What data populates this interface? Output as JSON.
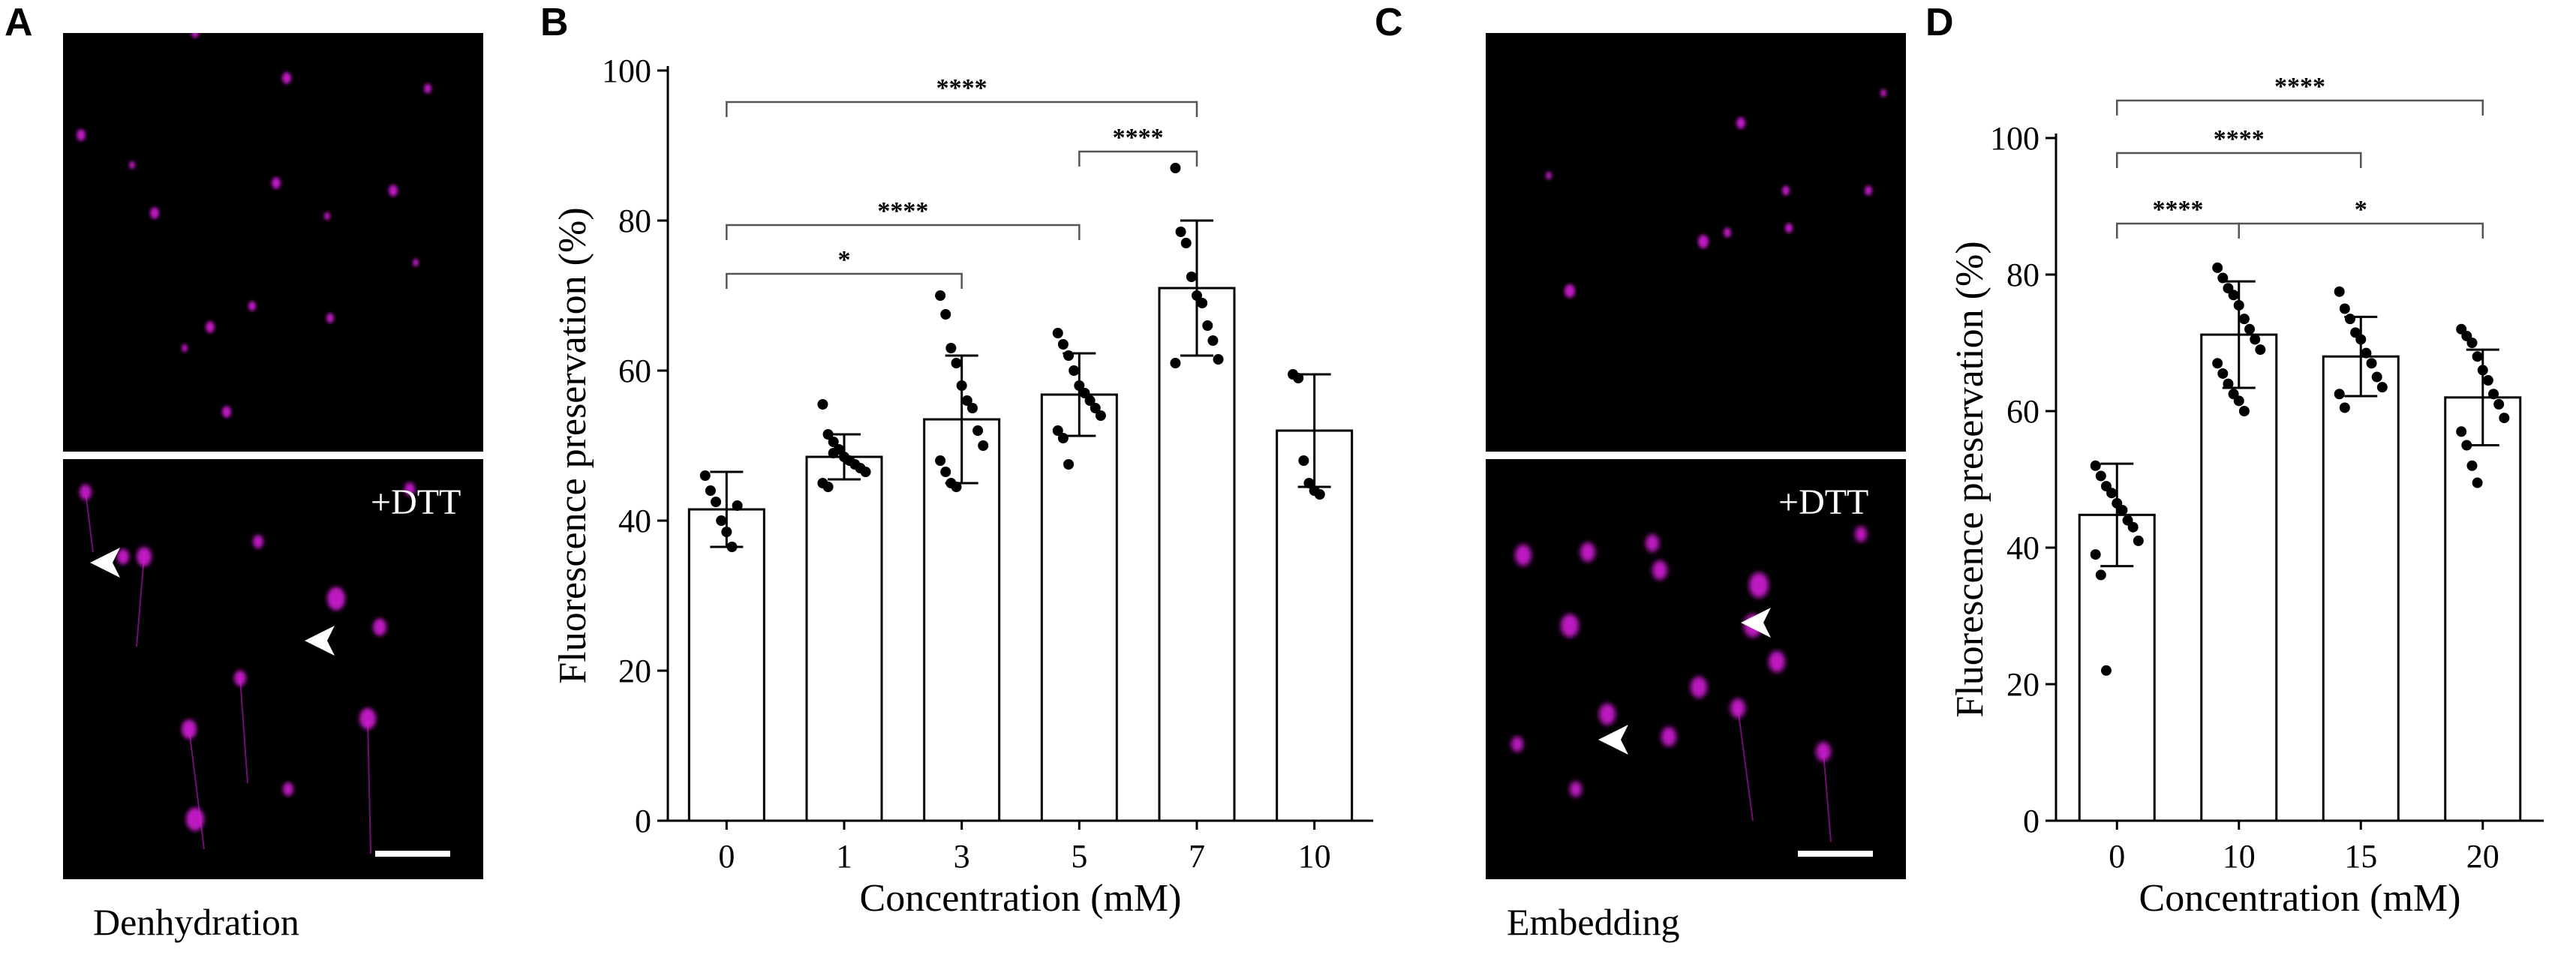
{
  "panels": {
    "a": {
      "letter": "A",
      "treatment_label": "+DTT",
      "caption": "Denhydration"
    },
    "b": {
      "letter": "B"
    },
    "c": {
      "letter": "C",
      "treatment_label": "+DTT",
      "caption": "Embedding"
    },
    "d": {
      "letter": "D"
    }
  },
  "colors": {
    "fluorescence": "#d21ad6",
    "background": "#000000",
    "bar_fill": "#ffffff",
    "stroke": "#000000"
  },
  "icons": {
    "arrowhead": "white-arrowhead-icon",
    "scale_bar": "scale-bar"
  },
  "chart_data": [
    {
      "type": "bar",
      "panel": "B",
      "title": "",
      "xlabel": "Concentration (mM)",
      "ylabel": "Fluorescence preservation (%)",
      "ylim": [
        0,
        100
      ],
      "yticks": [
        0,
        20,
        40,
        60,
        80,
        100
      ],
      "categories": [
        "0",
        "1",
        "3",
        "5",
        "7",
        "10"
      ],
      "values": [
        41.5,
        48.5,
        53.5,
        56.8,
        71.0,
        52.0
      ],
      "sd": [
        5.0,
        3.0,
        8.5,
        5.5,
        9.0,
        7.5
      ],
      "points": [
        [
          46.0,
          44.0,
          42.5,
          40.0,
          38.5,
          36.5,
          42.0
        ],
        [
          55.5,
          51.5,
          50.5,
          49.5,
          48.5,
          48.0,
          47.5,
          47.0,
          46.5,
          45.0,
          44.5,
          49.0
        ],
        [
          70.0,
          67.5,
          63.0,
          61.0,
          58.0,
          56.0,
          55.0,
          52.0,
          50.0,
          48.0,
          46.5,
          45.0,
          44.5
        ],
        [
          65.0,
          63.5,
          62.0,
          60.0,
          58.0,
          57.0,
          56.0,
          55.0,
          54.0,
          52.0,
          51.0,
          47.5
        ],
        [
          87.0,
          78.5,
          77.0,
          72.5,
          70.0,
          69.0,
          66.0,
          64.0,
          61.5,
          61.0
        ],
        [
          59.5,
          59.0,
          48.0,
          45.0,
          44.0,
          43.5
        ]
      ],
      "significance": [
        {
          "from": "0",
          "to": "7",
          "label": "****"
        },
        {
          "from": "5",
          "to": "7",
          "label": "****"
        },
        {
          "from": "0",
          "to": "5",
          "label": "****"
        },
        {
          "from": "0",
          "to": "3",
          "label": "*"
        }
      ]
    },
    {
      "type": "bar",
      "panel": "D",
      "title": "",
      "xlabel": "Concentration (mM)",
      "ylabel": "Fluorescence preservation (%)",
      "ylim": [
        0,
        100
      ],
      "yticks": [
        0,
        20,
        40,
        60,
        80,
        100
      ],
      "categories": [
        "0",
        "10",
        "15",
        "20"
      ],
      "values": [
        44.8,
        71.2,
        68.0,
        62.0
      ],
      "sd": [
        7.5,
        7.8,
        5.8,
        7.0
      ],
      "points": [
        [
          52.0,
          50.5,
          49.0,
          48.0,
          46.5,
          45.5,
          44.0,
          43.0,
          41.0,
          39.0,
          36.0,
          22.0
        ],
        [
          81.0,
          79.5,
          78.0,
          77.0,
          75.5,
          73.5,
          72.0,
          70.5,
          69.0,
          67.0,
          65.5,
          64.0,
          62.5,
          61.5,
          60.0
        ],
        [
          77.5,
          75.0,
          73.5,
          71.5,
          70.5,
          68.5,
          67.0,
          65.0,
          63.5,
          62.5,
          60.5
        ],
        [
          72.0,
          71.0,
          70.0,
          68.0,
          66.0,
          64.5,
          62.5,
          61.0,
          59.0,
          57.0,
          55.0,
          52.0,
          49.5
        ]
      ],
      "significance": [
        {
          "from": "0",
          "to": "20",
          "label": "****"
        },
        {
          "from": "0",
          "to": "15",
          "label": "****"
        },
        {
          "from": "0",
          "to": "10",
          "label": "****"
        },
        {
          "from": "10",
          "to": "20",
          "label": "*"
        }
      ]
    }
  ]
}
